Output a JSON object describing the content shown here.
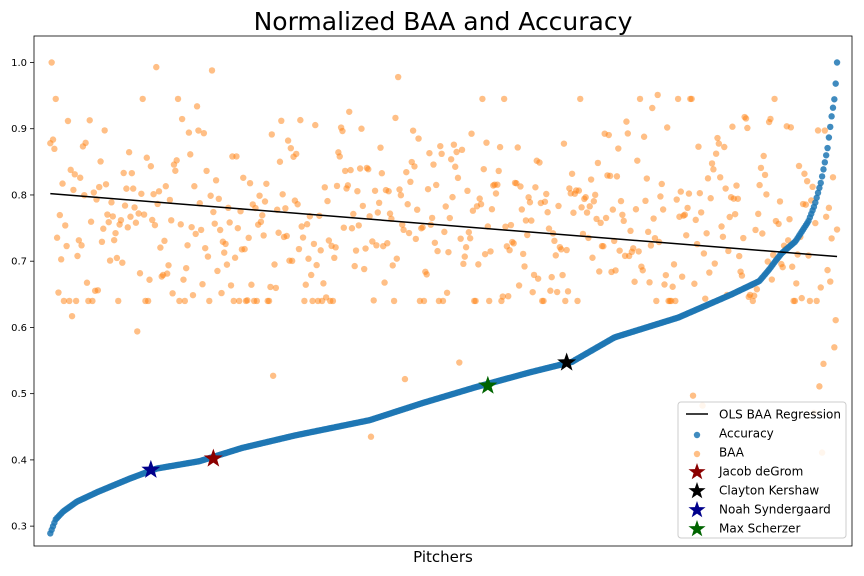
{
  "chart_data": {
    "type": "scatter",
    "title": "Normalized BAA and Accuracy",
    "xlabel": "Pitchers",
    "ylabel": "",
    "xticks_shown": false,
    "x_range": [
      -12,
      590
    ],
    "ylim": [
      0.27,
      1.04
    ],
    "yticks": [
      0.3,
      0.4,
      0.5,
      0.6,
      0.7,
      0.8,
      0.9,
      1.0
    ],
    "grid": false,
    "legend_position": "bottom-right",
    "n_points": 580,
    "colors": {
      "accuracy": "#1f77b4",
      "baa": "#ff7f0e",
      "ols": "#000000",
      "jacob_degrom": "#8b0000",
      "clayton_kershaw": "#000000",
      "noah_syndergaard": "#00008b",
      "max_scherzer": "#006400"
    },
    "series": [
      {
        "name": "OLS BAA Regression",
        "kind": "line",
        "x": [
          0,
          579
        ],
        "y": [
          0.802,
          0.707
        ]
      },
      {
        "name": "Accuracy",
        "kind": "scatter",
        "sorted_curve_profile": [
          [
            0,
            0.289
          ],
          [
            5,
            0.31
          ],
          [
            12,
            0.322
          ],
          [
            25,
            0.337
          ],
          [
            45,
            0.352
          ],
          [
            75,
            0.372
          ],
          [
            100,
            0.387
          ],
          [
            140,
            0.398
          ],
          [
            180,
            0.418
          ],
          [
            230,
            0.437
          ],
          [
            300,
            0.46
          ],
          [
            350,
            0.486
          ],
          [
            400,
            0.51
          ],
          [
            450,
            0.532
          ],
          [
            490,
            0.548
          ],
          [
            530,
            0.585
          ],
          [
            590,
            0.615
          ],
          [
            640,
            0.65
          ],
          [
            666,
            0.67
          ],
          [
            675,
            0.687
          ],
          [
            681,
            0.7
          ],
          [
            687,
            0.712
          ],
          [
            700,
            0.73
          ],
          [
            712,
            0.76
          ],
          [
            718,
            0.785
          ],
          [
            724,
            0.82
          ],
          [
            730,
            0.87
          ],
          [
            734,
            0.92
          ],
          [
            737,
            0.95
          ],
          [
            739,
            1.0
          ]
        ]
      },
      {
        "name": "BAA",
        "kind": "scatter",
        "distribution": {
          "mean": 0.755,
          "sd": 0.085,
          "min": 0.41,
          "max": 1.0,
          "seed": 7
        },
        "notable_points": [
          {
            "x": 1,
            "y": 1.0
          },
          {
            "x": 78,
            "y": 0.993
          },
          {
            "x": 119,
            "y": 0.988
          },
          {
            "x": 256,
            "y": 0.978
          },
          {
            "x": 447,
            "y": 0.951
          },
          {
            "x": 16,
            "y": 0.617
          },
          {
            "x": 64,
            "y": 0.594
          },
          {
            "x": 164,
            "y": 0.527
          },
          {
            "x": 236,
            "y": 0.435
          },
          {
            "x": 261,
            "y": 0.522
          },
          {
            "x": 301,
            "y": 0.547
          },
          {
            "x": 473,
            "y": 0.497
          },
          {
            "x": 480,
            "y": 0.482
          },
          {
            "x": 562,
            "y": 0.471
          },
          {
            "x": 566,
            "y": 0.511
          },
          {
            "x": 568,
            "y": 0.411
          },
          {
            "x": 569,
            "y": 0.545
          },
          {
            "x": 577,
            "y": 0.57
          },
          {
            "x": 578,
            "y": 0.611
          }
        ]
      },
      {
        "name": "Jacob deGrom",
        "kind": "marker",
        "x": 120,
        "y": 0.402
      },
      {
        "name": "Clayton Kershaw",
        "kind": "marker",
        "x": 380,
        "y": 0.547
      },
      {
        "name": "Noah Syndergaard",
        "kind": "marker",
        "x": 74,
        "y": 0.385
      },
      {
        "name": "Max Scherzer",
        "kind": "marker",
        "x": 322,
        "y": 0.512
      }
    ]
  }
}
